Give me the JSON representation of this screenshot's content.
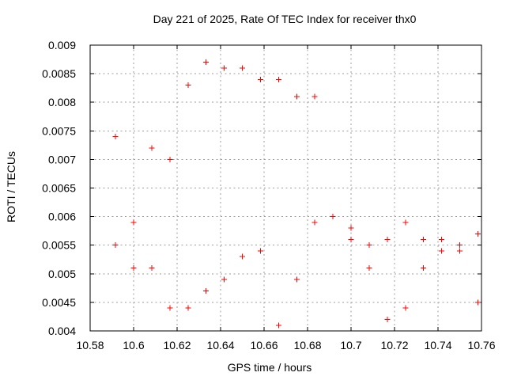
{
  "chart_data": {
    "type": "scatter",
    "title": "Day 221 of 2025, Rate Of TEC Index for receiver thx0",
    "xlabel": "GPS time / hours",
    "ylabel": "ROTI / TECUs",
    "xlim": [
      10.58,
      10.76
    ],
    "ylim": [
      0.004,
      0.009
    ],
    "xtick_labels": [
      "10.58",
      "10.6",
      "10.62",
      "10.64",
      "10.66",
      "10.68",
      "10.7",
      "10.72",
      "10.74",
      "10.76"
    ],
    "ytick_labels": [
      "0.004",
      "0.0045",
      "0.005",
      "0.0055",
      "0.006",
      "0.0065",
      "0.007",
      "0.0075",
      "0.008",
      "0.0085",
      "0.009"
    ],
    "grid": {
      "visible": true,
      "style": "dashed",
      "color": "#9e9e9e"
    },
    "legend": "none",
    "frame_color": "#000000",
    "background": "#ffffff",
    "series": [
      {
        "name": "ROTI",
        "marker": "plus",
        "color": "#ff0000",
        "points": [
          [
            10.5917,
            0.0074
          ],
          [
            10.5917,
            0.0055
          ],
          [
            10.6,
            0.0059
          ],
          [
            10.6,
            0.0051
          ],
          [
            10.6083,
            0.0072
          ],
          [
            10.6083,
            0.0051
          ],
          [
            10.6167,
            0.007
          ],
          [
            10.6167,
            0.0044
          ],
          [
            10.625,
            0.0083
          ],
          [
            10.625,
            0.0044
          ],
          [
            10.6333,
            0.0087
          ],
          [
            10.6333,
            0.0047
          ],
          [
            10.6417,
            0.0086
          ],
          [
            10.6417,
            0.0049
          ],
          [
            10.65,
            0.0086
          ],
          [
            10.65,
            0.0053
          ],
          [
            10.6583,
            0.0084
          ],
          [
            10.6583,
            0.0054
          ],
          [
            10.6667,
            0.0084
          ],
          [
            10.6667,
            0.0041
          ],
          [
            10.675,
            0.0081
          ],
          [
            10.675,
            0.0049
          ],
          [
            10.6833,
            0.0081
          ],
          [
            10.6833,
            0.0059
          ],
          [
            10.6917,
            0.006
          ],
          [
            10.7,
            0.0058
          ],
          [
            10.7,
            0.0056
          ],
          [
            10.7083,
            0.0055
          ],
          [
            10.7083,
            0.0051
          ],
          [
            10.7167,
            0.0056
          ],
          [
            10.7167,
            0.0042
          ],
          [
            10.725,
            0.0059
          ],
          [
            10.725,
            0.0044
          ],
          [
            10.7333,
            0.0056
          ],
          [
            10.7333,
            0.0051
          ],
          [
            10.7417,
            0.0056
          ],
          [
            10.7417,
            0.0054
          ],
          [
            10.75,
            0.0055
          ],
          [
            10.75,
            0.0054
          ],
          [
            10.7583,
            0.0057
          ],
          [
            10.7583,
            0.0045
          ]
        ]
      }
    ]
  }
}
